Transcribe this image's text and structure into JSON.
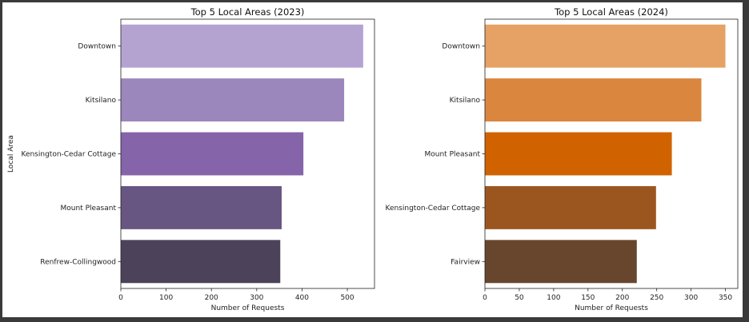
{
  "chart_data": [
    {
      "type": "bar",
      "orientation": "horizontal",
      "title": "Top 5 Local Areas (2023)",
      "xlabel": "Number of Requests",
      "ylabel": "Local Area",
      "xlim": [
        0,
        560
      ],
      "xticks": [
        0,
        100,
        200,
        300,
        400,
        500
      ],
      "categories": [
        "Downtown",
        "Kitsilano",
        "Kensington-Cedar Cottage",
        "Mount Pleasant",
        "Renfrew-Collingwood"
      ],
      "values": [
        535,
        493,
        403,
        355,
        352
      ],
      "colors": [
        "#b4a3d1",
        "#9c87bd",
        "#8564aa",
        "#675582",
        "#4c435a"
      ],
      "grid": false
    },
    {
      "type": "bar",
      "orientation": "horizontal",
      "title": "Top 5 Local Areas (2024)",
      "xlabel": "Number of Requests",
      "ylabel": "",
      "xlim": [
        0,
        368
      ],
      "xticks": [
        0,
        50,
        100,
        150,
        200,
        250,
        300,
        350
      ],
      "categories": [
        "Downtown",
        "Kitsilano",
        "Mount Pleasant",
        "Kensington-Cedar Cottage",
        "Fairview"
      ],
      "values": [
        350,
        315,
        272,
        249,
        221
      ],
      "colors": [
        "#e5a264",
        "#db863f",
        "#d06300",
        "#9b561f",
        "#68462d"
      ],
      "grid": false
    }
  ]
}
